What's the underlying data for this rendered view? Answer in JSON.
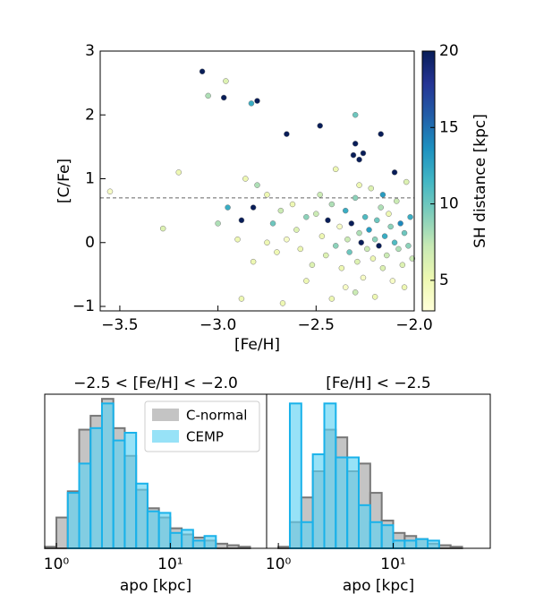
{
  "chart_data": [
    {
      "type": "scatter",
      "xlabel": "[Fe/H]",
      "ylabel": "[C/Fe]",
      "xlim": [
        -3.6,
        -2.0
      ],
      "ylim": [
        -1.07,
        3.0
      ],
      "xticks": [
        {
          "value": -3.5,
          "label": "−3.5"
        },
        {
          "value": -3.0,
          "label": "−3.0"
        },
        {
          "value": -2.5,
          "label": "−2.5"
        },
        {
          "value": -2.0,
          "label": "−2.0"
        }
      ],
      "yticks": [
        {
          "value": -1,
          "label": "−1"
        },
        0,
        1,
        2,
        3
      ],
      "threshold": 0.7,
      "cmap": "YlGnBu",
      "clim": [
        3,
        20
      ],
      "cticks": [
        5,
        10,
        15,
        20
      ],
      "clabel": "SH distance [kpc]",
      "x": [
        -3.08,
        -3.05,
        -2.97,
        -2.96,
        -2.83,
        -2.8,
        -2.65,
        -2.48,
        -2.3,
        -2.31,
        -2.26,
        -2.3,
        -2.17,
        -2.28,
        -3.55,
        -3.2,
        -3.28,
        -3.0,
        -2.95,
        -2.88,
        -2.82,
        -2.8,
        -2.86,
        -2.75,
        -2.7,
        -2.82,
        -2.88,
        -2.67,
        -2.55,
        -2.42,
        -2.3,
        -2.5,
        -2.47,
        -2.45,
        -2.44,
        -2.42,
        -2.4,
        -2.38,
        -2.37,
        -2.35,
        -2.34,
        -2.33,
        -2.32,
        -2.3,
        -2.29,
        -2.28,
        -2.27,
        -2.26,
        -2.25,
        -2.24,
        -2.23,
        -2.22,
        -2.21,
        -2.2,
        -2.19,
        -2.18,
        -2.17,
        -2.16,
        -2.15,
        -2.14,
        -2.13,
        -2.12,
        -2.11,
        -2.1,
        -2.09,
        -2.08,
        -2.07,
        -2.06,
        -2.05,
        -2.04,
        -2.03,
        -2.02,
        -2.01,
        -2.6,
        -2.58,
        -2.55,
        -2.62,
        -2.65,
        -2.52,
        -2.48,
        -2.4,
        -2.35,
        -2.2,
        -2.1,
        -2.05,
        -2.28,
        -2.16,
        -2.72,
        -2.75,
        -2.68,
        -2.9
      ],
      "values": [
        2.68,
        2.3,
        2.27,
        2.53,
        2.18,
        2.22,
        1.7,
        1.83,
        1.55,
        1.37,
        1.4,
        2.0,
        1.7,
        1.3,
        0.8,
        1.1,
        0.22,
        0.3,
        0.55,
        0.35,
        0.55,
        0.9,
        1.0,
        0.75,
        -0.15,
        -0.3,
        -0.88,
        -0.95,
        -0.6,
        -0.88,
        -0.78,
        0.45,
        0.1,
        -0.2,
        0.35,
        0.6,
        -0.05,
        0.25,
        -0.4,
        0.5,
        0.05,
        -0.15,
        0.3,
        0.7,
        -0.3,
        0.15,
        0.0,
        -0.55,
        0.4,
        -0.1,
        0.2,
        0.85,
        -0.25,
        0.05,
        0.35,
        -0.05,
        0.55,
        -0.4,
        0.1,
        -0.2,
        0.45,
        0.25,
        -0.6,
        0.0,
        0.65,
        -0.1,
        0.3,
        -0.35,
        0.15,
        0.95,
        -0.05,
        0.4,
        -0.25,
        0.2,
        -0.1,
        0.4,
        0.6,
        0.05,
        -0.35,
        0.75,
        1.15,
        -0.7,
        -0.85,
        1.1,
        -0.7,
        0.9,
        0.75,
        0.3,
        0.0,
        0.5,
        0.05
      ],
      "c": [
        20,
        8,
        20,
        6,
        12,
        20,
        20,
        20,
        20,
        20,
        20,
        10,
        20,
        20,
        4,
        5,
        6,
        8,
        12,
        20,
        20,
        8,
        5,
        5,
        5,
        5,
        5,
        5,
        5,
        5,
        7,
        7,
        5,
        6,
        20,
        8,
        9,
        4,
        5,
        12,
        7,
        10,
        20,
        9,
        6,
        8,
        20,
        4,
        11,
        7,
        13,
        6,
        5,
        9,
        10,
        20,
        8,
        6,
        12,
        7,
        5,
        9,
        4,
        11,
        7,
        8,
        14,
        6,
        10,
        6,
        9,
        12,
        7,
        6,
        5,
        9,
        5,
        4,
        6,
        7,
        5,
        4,
        5,
        20,
        5,
        5,
        13,
        10,
        5,
        7,
        5
      ]
    },
    {
      "type": "histogram",
      "title": "−2.5 < [Fe/H] < −2.0",
      "xlabel": "apo [kpc]",
      "log_x": true,
      "xlim": [
        0.79,
        70
      ],
      "xticks": [
        {
          "value": 1,
          "label": "10⁰"
        },
        {
          "value": 10,
          "label": "10¹"
        }
      ],
      "ylim": [
        0,
        1
      ],
      "legend": "upper right",
      "bins": [
        0.794,
        1,
        1.259,
        1.585,
        1.995,
        2.512,
        3.162,
        3.981,
        5.012,
        6.31,
        7.943,
        10,
        12.59,
        15.85,
        19.95,
        25.12,
        31.62,
        39.81,
        50.12,
        63.1
      ],
      "series": [
        {
          "name": "C-normal",
          "color": "#c4c4c4",
          "edgecolor": "#777777",
          "values": [
            0.01,
            0.2,
            0.37,
            0.77,
            0.86,
            0.97,
            0.78,
            0.6,
            0.38,
            0.26,
            0.2,
            0.13,
            0.09,
            0.07,
            0.05,
            0.03,
            0.02,
            0.01,
            0.0
          ]
        },
        {
          "name": "CEMP",
          "color": "#5fd3f3",
          "edgecolor": "#19b2ea",
          "values": [
            0,
            0,
            0.36,
            0.55,
            0.78,
            0.94,
            0.7,
            0.75,
            0.42,
            0.24,
            0.23,
            0.1,
            0.12,
            0.05,
            0.08,
            0,
            0,
            0,
            0
          ]
        }
      ]
    },
    {
      "type": "histogram",
      "title": "[Fe/H] < −2.5",
      "xlabel": "apo [kpc]",
      "log_x": true,
      "xlim": [
        0.79,
        70
      ],
      "xticks": [
        {
          "value": 1,
          "label": "10⁰"
        },
        {
          "value": 10,
          "label": "10¹"
        }
      ],
      "ylim": [
        0,
        1
      ],
      "bins": [
        0.794,
        1,
        1.259,
        1.585,
        1.995,
        2.512,
        3.162,
        3.981,
        5.012,
        6.31,
        7.943,
        10,
        12.59,
        15.85,
        19.95,
        25.12,
        31.62,
        39.81,
        50.12,
        63.1
      ],
      "series": [
        {
          "color": "#c4c4c4",
          "edgecolor": "#777777",
          "values": [
            0,
            0.01,
            0.17,
            0.33,
            0.5,
            0.77,
            0.72,
            0.5,
            0.55,
            0.36,
            0.18,
            0.1,
            0.08,
            0.06,
            0.03,
            0.02,
            0.01,
            0,
            0
          ]
        },
        {
          "color": "#5fd3f3",
          "edgecolor": "#19b2ea",
          "values": [
            0,
            0,
            0.94,
            0.17,
            0.61,
            0.94,
            0.59,
            0.59,
            0.28,
            0.17,
            0.15,
            0.05,
            0.05,
            0.06,
            0.05,
            0,
            0,
            0,
            0
          ]
        }
      ]
    }
  ]
}
